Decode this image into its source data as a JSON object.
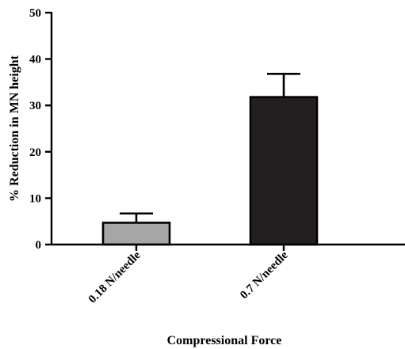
{
  "chart_data": {
    "type": "bar",
    "categories": [
      "0.18 N/needle",
      "0.7 N/needle"
    ],
    "series": [
      {
        "values": [
          4.7,
          31.8
        ],
        "errors": [
          2.0,
          5.0
        ],
        "colors": [
          "#a6a6a6",
          "#231f20"
        ]
      }
    ],
    "xlabel": "Compressional Force",
    "ylabel": "% Reduction in MN height",
    "ylim": [
      0,
      50
    ],
    "yticks": [
      0,
      10,
      20,
      30,
      40,
      50
    ],
    "grid": false,
    "legend": "none"
  }
}
